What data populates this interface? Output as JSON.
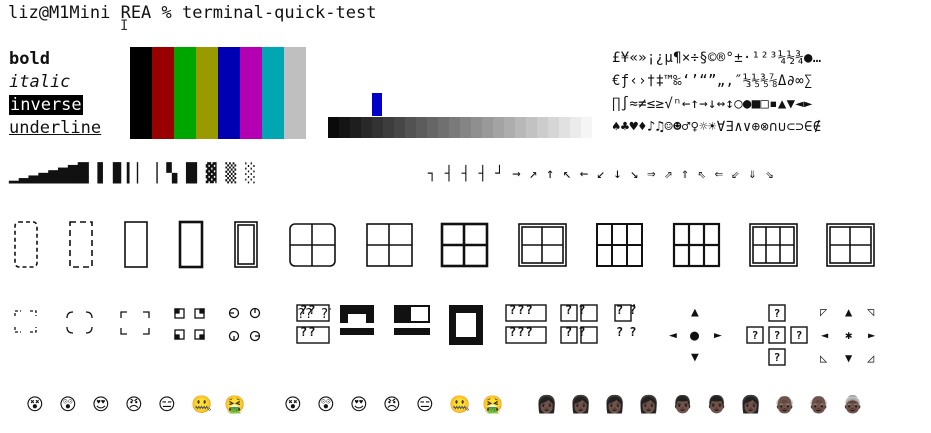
{
  "terminal": {
    "prompt": "liz@M1Mini REA % terminal-quick-test"
  },
  "text_styles": {
    "bold": "bold",
    "italic": "italic",
    "inverse": "inverse",
    "underline": "underline"
  },
  "colors": {
    "palette": [
      "#000000",
      "#990000",
      "#00a600",
      "#999900",
      "#0000b2",
      "#b200b2",
      "#00a6b2",
      "#bfbfbf"
    ],
    "accent_blue": "#0000c8"
  },
  "symbols": {
    "row1": "£¥«»¡¿µ¶×÷§©®°±·¹²³¼½¾●…",
    "row2": "€ƒ‹›†‡™‰‘’“”„‚″⅓⅕⅗⅞Δ∂∞∑",
    "row3": "∏∫≈≠≤≥√ⁿ←↑→↓↔↕○●■□▪▲▼◄►",
    "row4": "♠♣♥♦♪♫☺☻♂♀☼☀∀∃∧∨⊕⊗∩∪⊂⊃∈∉"
  },
  "glyph_rows": {
    "blocks": "▁▂▃▄▅▆▇█ ▌▐▍▎▏▕ ▚ █ ▓ ▒ ░",
    "corners_arrows": "┐ ┤ ┤ ┤ ┘ → ↗ ↑ ↖ ← ↙ ↓ ↘ ⇒ ⇗ ⇑ ⇖ ⇐ ⇙ ⇓ ⇘",
    "quadrants_left": "╶╴ ╭╮ ┌┐ ◲◱ ◶◵",
    "quadrants_left2": "╶╴ ╰╯ └┘ ◳◰ ◷◴",
    "missing_glyphs": "?? ?? ?? ?? ?? ??",
    "dpad": "▲ ◄ ● ► ▼",
    "triangles": "◸ ▲ ◹ ◄ ✱ ► ◺ ▼ ◿"
  },
  "emoji": {
    "faces": [
      "😵",
      "😲",
      "😍",
      "😠",
      "😑",
      "🤐",
      "🤮"
    ],
    "faces2": [
      "😵",
      "😲",
      "😍",
      "😠",
      "😑",
      "🤐",
      "🤮"
    ],
    "people": [
      "👩🏿",
      "👩🏿",
      "👩🏿",
      "👩🏿",
      "👨🏿",
      "👨🏿",
      "👩🏿",
      "👴🏿",
      "👴🏿",
      "👵🏿"
    ]
  }
}
